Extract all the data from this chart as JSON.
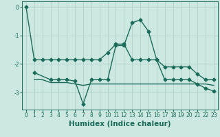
{
  "xlabel": "Humidex (Indice chaleur)",
  "background_color": "#cce8e0",
  "grid_color": "#aaccC4",
  "line_color": "#1a6b5a",
  "xlim": [
    -0.5,
    23.5
  ],
  "ylim": [
    -3.6,
    0.2
  ],
  "yticks": [
    0,
    -1,
    -2,
    -3
  ],
  "xticks": [
    0,
    1,
    2,
    3,
    4,
    5,
    6,
    7,
    8,
    9,
    10,
    11,
    12,
    13,
    14,
    15,
    16,
    17,
    18,
    19,
    20,
    21,
    22,
    23
  ],
  "line1_x": [
    0,
    1,
    2,
    3,
    4,
    5,
    6,
    7,
    8,
    9,
    10,
    11,
    12,
    13,
    14,
    15,
    16,
    17,
    18,
    19,
    20,
    21,
    22,
    23
  ],
  "line1_y": [
    0.0,
    -1.85,
    -1.85,
    -1.85,
    -1.85,
    -1.85,
    -1.85,
    -1.85,
    -1.85,
    -1.85,
    -1.6,
    -1.3,
    -1.3,
    -1.85,
    -1.85,
    -1.85,
    -1.85,
    -2.1,
    -2.1,
    -2.1,
    -2.1,
    -2.35,
    -2.55,
    -2.55
  ],
  "line2_x": [
    1,
    3,
    4,
    5,
    6,
    7,
    8,
    9,
    10,
    11,
    12,
    13,
    14,
    15,
    16,
    17,
    18,
    19,
    20,
    21,
    22,
    23
  ],
  "line2_y": [
    -2.3,
    -2.55,
    -2.55,
    -2.55,
    -2.6,
    -3.4,
    -2.55,
    -2.55,
    -2.55,
    -1.35,
    -1.35,
    -0.55,
    -0.45,
    -0.85,
    -1.85,
    -2.55,
    -2.55,
    -2.55,
    -2.55,
    -2.7,
    -2.85,
    -2.95
  ],
  "line3_x": [
    1,
    2,
    3,
    4,
    5,
    6,
    7,
    8,
    9,
    10,
    11,
    12,
    13,
    14,
    15,
    16,
    17,
    18,
    19,
    20,
    21,
    22,
    23
  ],
  "line3_y": [
    -2.55,
    -2.55,
    -2.65,
    -2.65,
    -2.65,
    -2.7,
    -2.75,
    -2.7,
    -2.7,
    -2.7,
    -2.7,
    -2.7,
    -2.7,
    -2.7,
    -2.7,
    -2.7,
    -2.7,
    -2.7,
    -2.7,
    -2.7,
    -2.7,
    -2.7,
    -2.75
  ],
  "marker": "D",
  "markersize": 2.5,
  "linewidth": 1.0,
  "tick_fontsize": 5.5,
  "label_fontsize": 7.5,
  "label_fontweight": "bold"
}
